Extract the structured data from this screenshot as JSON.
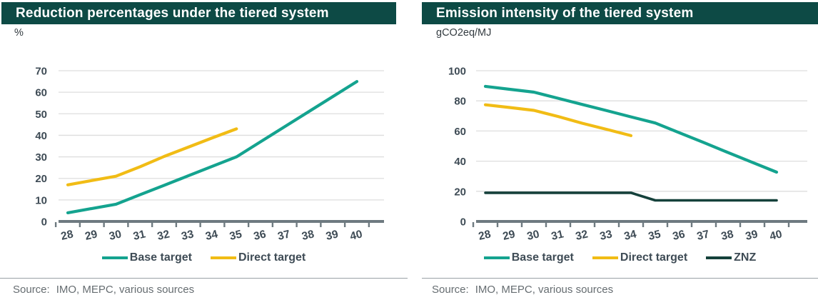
{
  "colors": {
    "header_bg": "#0d4a45",
    "teal": "#14a38f",
    "yellow": "#f1bc15",
    "dark_green": "#15413b",
    "axis": "#6e7a80",
    "grid": "#dedede",
    "tick_label": "#3e4b55"
  },
  "panels": [
    {
      "title": "Reduction percentages under the tiered system",
      "unit": "%",
      "source_label": "Source:",
      "source_text": "IMO, MEPC, various sources",
      "legend": [
        {
          "label": "Base target",
          "color": "#14a38f"
        },
        {
          "label": "Direct target",
          "color": "#f1bc15"
        }
      ]
    },
    {
      "title": "Emission intensity of the tiered system",
      "unit": "gCO2eq/MJ",
      "source_label": "Source:",
      "source_text": "IMO, MEPC, various sources",
      "legend": [
        {
          "label": "Base target",
          "color": "#14a38f"
        },
        {
          "label": "Direct target",
          "color": "#f1bc15"
        },
        {
          "label": "ZNZ",
          "color": "#15413b"
        }
      ]
    }
  ],
  "chart_data": [
    {
      "type": "line",
      "title": "Reduction percentages under the tiered system",
      "ylabel": "%",
      "x": [
        28,
        29,
        30,
        31,
        32,
        33,
        34,
        35,
        36,
        37,
        38,
        39,
        40
      ],
      "ylim": [
        0,
        70
      ],
      "yticks": [
        0,
        10,
        20,
        30,
        40,
        50,
        60,
        70
      ],
      "grid": true,
      "legend_position": "bottom",
      "series": [
        {
          "name": "Base target",
          "color": "#14a38f",
          "values": [
            4,
            6,
            8,
            12.4,
            16.8,
            21.2,
            25.6,
            30,
            37,
            44,
            51,
            58,
            65
          ]
        },
        {
          "name": "Direct target",
          "color": "#f1bc15",
          "values": [
            17,
            19,
            21,
            25.4,
            30.2,
            34.5,
            38.8,
            43,
            null,
            null,
            null,
            null,
            null
          ]
        }
      ]
    },
    {
      "type": "line",
      "title": "Emission intensity of the tiered system",
      "ylabel": "gCO2eq/MJ",
      "x": [
        28,
        29,
        30,
        31,
        32,
        33,
        34,
        35,
        36,
        37,
        38,
        39,
        40
      ],
      "ylim": [
        0,
        100
      ],
      "yticks": [
        0,
        20,
        40,
        60,
        80,
        100
      ],
      "grid": true,
      "legend_position": "bottom",
      "series": [
        {
          "name": "Base target",
          "color": "#14a38f",
          "values": [
            89.6,
            87.7,
            85.8,
            81.7,
            77.6,
            73.5,
            69.4,
            65.3,
            58.8,
            52.3,
            45.7,
            39.2,
            32.7
          ]
        },
        {
          "name": "Direct target",
          "color": "#f1bc15",
          "values": [
            77.4,
            75.6,
            73.7,
            69.6,
            65.1,
            61.1,
            56.9,
            null,
            null,
            null,
            null,
            null,
            null
          ]
        },
        {
          "name": "ZNZ",
          "color": "#15413b",
          "values": [
            19,
            19,
            19,
            19,
            19,
            19,
            19,
            14,
            14,
            14,
            14,
            14,
            14
          ]
        }
      ]
    }
  ]
}
